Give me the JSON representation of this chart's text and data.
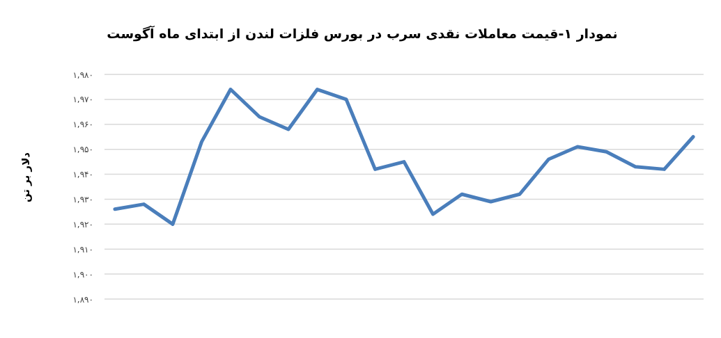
{
  "chart_data": {
    "type": "line",
    "title": "نمودار ۱-قیمت معاملات نقدی سرب در بورس فلزات لندن از ابتدای ماه آگوست",
    "ylabel": "دلار بر تن",
    "categories": [
      null,
      null,
      null,
      null,
      null,
      null,
      null,
      null,
      null,
      null,
      null,
      null,
      null,
      null,
      null,
      null,
      null,
      null,
      null,
      null,
      null
    ],
    "series": [
      {
        "color": "#4a7ebb",
        "values": [
          1926,
          1928,
          1920,
          1953,
          1974,
          1963,
          1958,
          1974,
          1970,
          1942,
          1945,
          1924,
          1932,
          1929,
          1932,
          1946,
          1951,
          1949,
          1943,
          1942,
          1955
        ]
      }
    ],
    "ylim": [
      1890,
      1980
    ],
    "yticks": [
      {
        "value": 1890,
        "label": "۱,۸۹۰"
      },
      {
        "value": 1900,
        "label": "۱,۹۰۰"
      },
      {
        "value": 1910,
        "label": "۱,۹۱۰"
      },
      {
        "value": 1920,
        "label": "۱,۹۲۰"
      },
      {
        "value": 1930,
        "label": "۱,۹۳۰"
      },
      {
        "value": 1940,
        "label": "۱,۹۴۰"
      },
      {
        "value": 1950,
        "label": "۱,۹۵۰"
      },
      {
        "value": 1960,
        "label": "۱,۹۶۰"
      },
      {
        "value": 1970,
        "label": "۱,۹۷۰"
      },
      {
        "value": 1980,
        "label": "۱,۹۸۰"
      }
    ],
    "grid": "y",
    "tick_labels": "y"
  }
}
